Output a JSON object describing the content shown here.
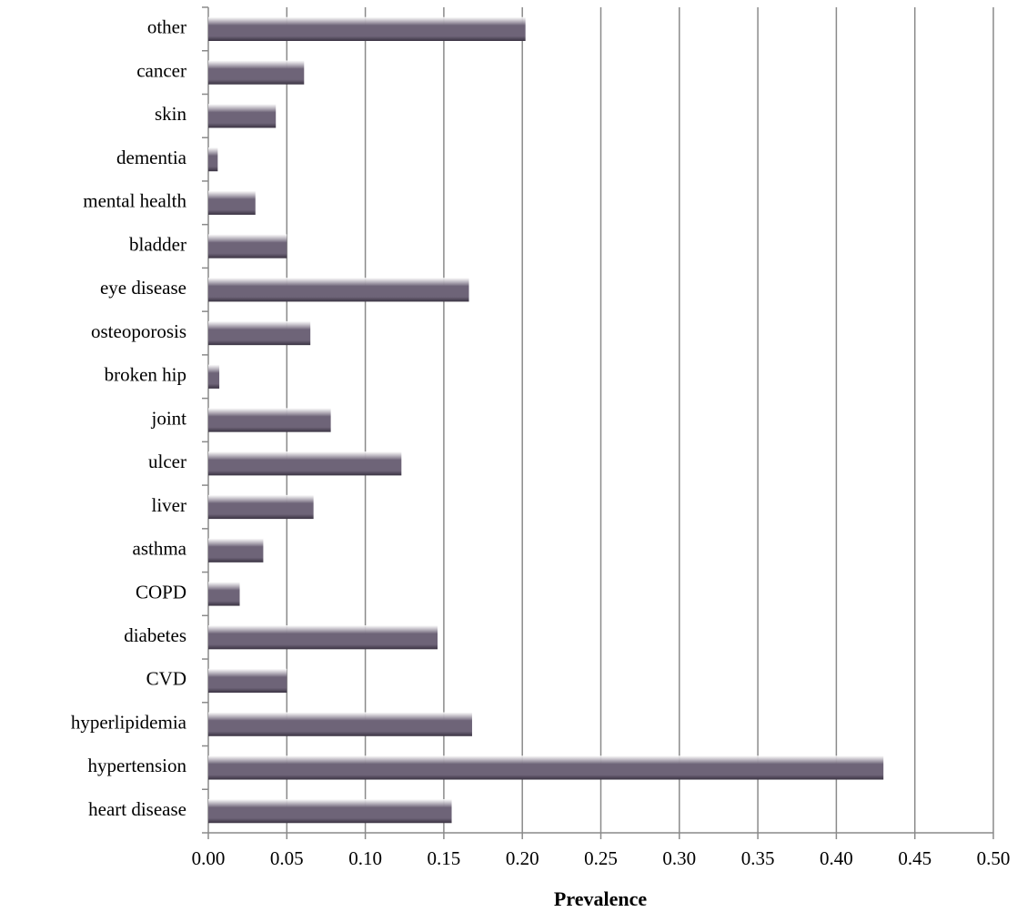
{
  "chart_data": {
    "type": "barh",
    "x_label": "Prevalence",
    "categories": [
      "heart disease",
      "hypertension",
      "hyperlipidemia",
      "CVD",
      "diabetes",
      "COPD",
      "asthma",
      "liver",
      "ulcer",
      "joint",
      "broken hip",
      "osteoporosis",
      "eye disease",
      "bladder",
      "mental health",
      "dementia",
      "skin",
      "cancer",
      "other"
    ],
    "values": [
      0.155,
      0.43,
      0.168,
      0.05,
      0.146,
      0.02,
      0.035,
      0.067,
      0.123,
      0.078,
      0.007,
      0.065,
      0.166,
      0.05,
      0.03,
      0.006,
      0.043,
      0.061,
      0.202
    ],
    "color": "#6e6478",
    "xlim": [
      0,
      0.5
    ],
    "xticks": [
      {
        "value": 0,
        "label": "0.00"
      },
      {
        "value": 0.05,
        "label": "0.05"
      },
      {
        "value": 0.1,
        "label": "0.10"
      },
      {
        "value": 0.15,
        "label": "0.15"
      },
      {
        "value": 0.2,
        "label": "0.20"
      },
      {
        "value": 0.25,
        "label": "0.25"
      },
      {
        "value": 0.3,
        "label": "0.30"
      },
      {
        "value": 0.35,
        "label": "0.35"
      },
      {
        "value": 0.4,
        "label": "0.40"
      },
      {
        "value": 0.45,
        "label": "0.45"
      },
      {
        "value": 0.5,
        "label": "0.50"
      }
    ],
    "grid": true
  }
}
